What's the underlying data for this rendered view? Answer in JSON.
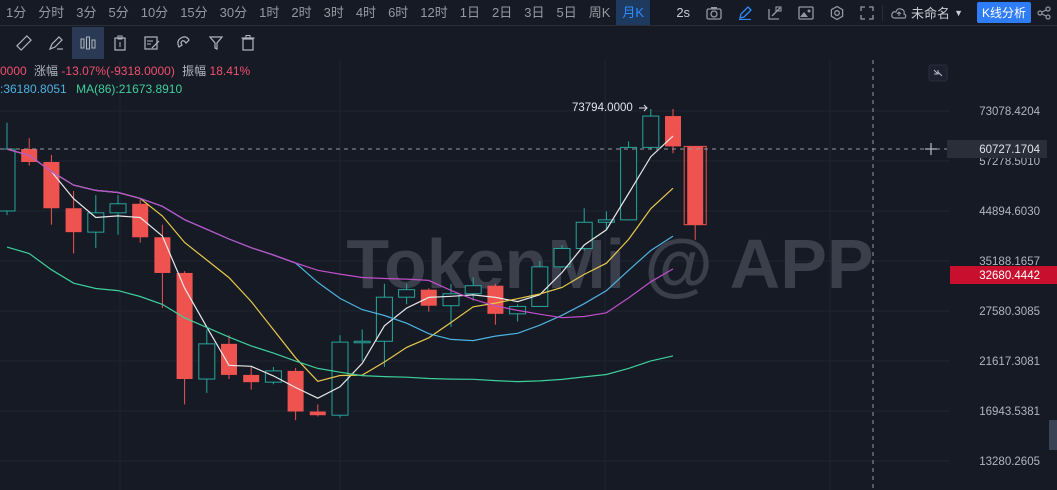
{
  "timeframes": [
    {
      "label": "1分",
      "active": false
    },
    {
      "label": "分时",
      "active": false
    },
    {
      "label": "3分",
      "active": false
    },
    {
      "label": "5分",
      "active": false
    },
    {
      "label": "10分",
      "active": false
    },
    {
      "label": "15分",
      "active": false
    },
    {
      "label": "30分",
      "active": false
    },
    {
      "label": "1时",
      "active": false
    },
    {
      "label": "2时",
      "active": false
    },
    {
      "label": "3时",
      "active": false
    },
    {
      "label": "4时",
      "active": false
    },
    {
      "label": "6时",
      "active": false
    },
    {
      "label": "12时",
      "active": false
    },
    {
      "label": "1日",
      "active": false
    },
    {
      "label": "2日",
      "active": false
    },
    {
      "label": "3日",
      "active": false
    },
    {
      "label": "5日",
      "active": false
    },
    {
      "label": "周K",
      "active": false
    },
    {
      "label": "月K",
      "active": true
    }
  ],
  "header_right": {
    "interval": "2s",
    "layout_name": "未命名",
    "analysis_button": "K线分析"
  },
  "info": {
    "line1_prefix": "0000",
    "change_label": "涨幅",
    "change_value": "-13.07%(-9318.0000)",
    "amp_label": "振幅",
    "amp_value": "18.41%",
    "ma_a": ":36180.8051",
    "ma_b": "MA(86):21673.8910"
  },
  "watermark": "TokenMi @ APP",
  "chart_data": {
    "type": "candlestick",
    "price_axis": [
      "73078.4204",
      "57278.5010",
      "44894.6030",
      "35188.1657",
      "27580.3085",
      "21617.3081",
      "16943.5381",
      "13280.2605"
    ],
    "crosshair_price": "60727.1704",
    "current_price": "32680.4442",
    "high_annotation": "73794.0000",
    "candles": [
      {
        "o": 44894,
        "h": 69000,
        "l": 44000,
        "c": 60727
      },
      {
        "o": 60727,
        "h": 64000,
        "l": 56000,
        "c": 57000
      },
      {
        "o": 57000,
        "h": 59000,
        "l": 42000,
        "c": 45500
      },
      {
        "o": 45500,
        "h": 49500,
        "l": 36500,
        "c": 40500
      },
      {
        "o": 40500,
        "h": 48500,
        "l": 37500,
        "c": 44500
      },
      {
        "o": 44500,
        "h": 48500,
        "l": 40000,
        "c": 46500
      },
      {
        "o": 46500,
        "h": 47500,
        "l": 38500,
        "c": 39500
      },
      {
        "o": 39500,
        "h": 42000,
        "l": 28000,
        "c": 33200
      },
      {
        "o": 33200,
        "h": 33500,
        "l": 17500,
        "c": 19800
      },
      {
        "o": 19800,
        "h": 25200,
        "l": 18500,
        "c": 23500
      },
      {
        "o": 23500,
        "h": 24500,
        "l": 19800,
        "c": 20200
      },
      {
        "o": 20200,
        "h": 21000,
        "l": 18800,
        "c": 19500
      },
      {
        "o": 19500,
        "h": 21000,
        "l": 19300,
        "c": 20600
      },
      {
        "o": 20600,
        "h": 20900,
        "l": 16200,
        "c": 16900
      },
      {
        "o": 16900,
        "h": 17500,
        "l": 16500,
        "c": 16600
      },
      {
        "o": 16600,
        "h": 24500,
        "l": 16400,
        "c": 23700
      },
      {
        "o": 23700,
        "h": 25200,
        "l": 21600,
        "c": 23800
      },
      {
        "o": 23800,
        "h": 31500,
        "l": 21000,
        "c": 29500
      },
      {
        "o": 29500,
        "h": 31500,
        "l": 28500,
        "c": 30600
      },
      {
        "o": 30600,
        "h": 30800,
        "l": 27500,
        "c": 28300
      },
      {
        "o": 28300,
        "h": 31500,
        "l": 25500,
        "c": 30000
      },
      {
        "o": 30000,
        "h": 32500,
        "l": 29000,
        "c": 31200
      },
      {
        "o": 31200,
        "h": 31500,
        "l": 25800,
        "c": 27200
      },
      {
        "o": 27200,
        "h": 28500,
        "l": 26200,
        "c": 28200
      },
      {
        "o": 28200,
        "h": 35200,
        "l": 28200,
        "c": 34200
      },
      {
        "o": 34200,
        "h": 38000,
        "l": 34000,
        "c": 37400
      },
      {
        "o": 37400,
        "h": 45500,
        "l": 37000,
        "c": 42500
      },
      {
        "o": 42500,
        "h": 44800,
        "l": 41000,
        "c": 43000
      },
      {
        "o": 43000,
        "h": 63000,
        "l": 42900,
        "c": 61200
      },
      {
        "o": 61200,
        "h": 73794,
        "l": 60500,
        "c": 71300
      },
      {
        "o": 71300,
        "h": 73794,
        "l": 59500,
        "c": 61500
      },
      {
        "o": 61500,
        "h": 61600,
        "l": 39000,
        "c": 42000
      }
    ]
  }
}
